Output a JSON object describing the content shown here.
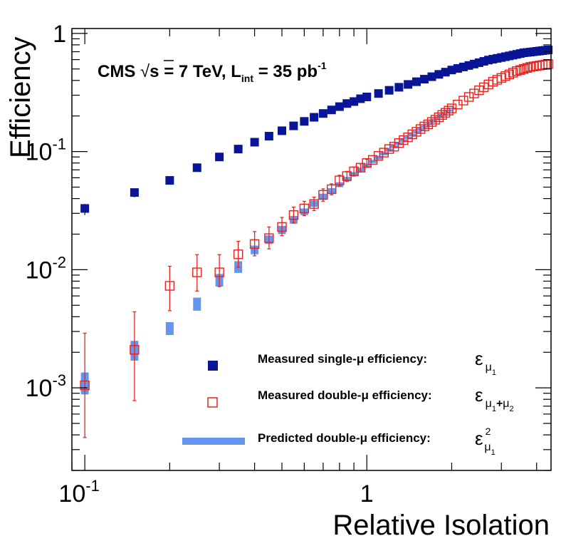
{
  "chart_data": {
    "type": "scatter",
    "title": "",
    "xlabel": "Relative Isolation",
    "ylabel": "Efficiency",
    "xscale": "log",
    "yscale": "log",
    "xlim": [
      0.09,
      4.5
    ],
    "ylim": [
      0.0002,
      1.1
    ],
    "x_ticks": [
      {
        "value": 0.1,
        "base": "10",
        "exp": "-1"
      },
      {
        "value": 1,
        "base": "1",
        "exp": ""
      }
    ],
    "y_ticks": [
      {
        "value": 0.001,
        "base": "10",
        "exp": "-3"
      },
      {
        "value": 0.01,
        "base": "10",
        "exp": "-2"
      },
      {
        "value": 0.1,
        "base": "10",
        "exp": "-1"
      },
      {
        "value": 1,
        "base": "1",
        "exp": ""
      }
    ],
    "annotation": {
      "prefix": "CMS ",
      "sqrt": "√",
      "s_energy": "s = 7 TeV,  L",
      "lumi_sub": "int",
      "lumi_val": " = 35 pb",
      "lumi_sup": "-1"
    },
    "legend": {
      "placement": "bottom-right",
      "entries": [
        {
          "label": "Measured single-μ efficiency:",
          "sym_main": "ε",
          "sym_sub": "μ",
          "sym_subsub": "1",
          "sym_mid": "",
          "sym_sub2": "",
          "sym_subsub2": "",
          "sym_sup": "",
          "marker": "filled-square"
        },
        {
          "label": "Measured double-μ efficiency:",
          "sym_main": "ε",
          "sym_sub": "μ",
          "sym_subsub": "1",
          "sym_mid": "+",
          "sym_sub2": "μ",
          "sym_subsub2": "2",
          "sym_sup": "",
          "marker": "open-square"
        },
        {
          "label": "Predicted double-μ  efficiency:",
          "sym_main": "ε",
          "sym_sub": "μ",
          "sym_subsub": "1",
          "sym_mid": "",
          "sym_sub2": "",
          "sym_subsub2": "",
          "sym_sup": "2",
          "marker": "band"
        }
      ]
    },
    "series": [
      {
        "name": "Measured single-μ efficiency",
        "marker": "filled-square",
        "color": "#0a1496",
        "x": [
          0.1,
          0.15,
          0.2,
          0.25,
          0.3,
          0.35,
          0.4,
          0.45,
          0.5,
          0.55,
          0.6,
          0.65,
          0.7,
          0.75,
          0.8,
          0.85,
          0.9,
          0.95,
          1.0,
          1.1,
          1.2,
          1.3,
          1.4,
          1.5,
          1.6,
          1.7,
          1.8,
          1.9,
          2.0,
          2.1,
          2.2,
          2.3,
          2.4,
          2.5,
          2.6,
          2.7,
          2.8,
          2.9,
          3.0,
          3.1,
          3.2,
          3.3,
          3.4,
          3.5,
          3.6,
          3.7,
          3.8,
          3.9,
          4.0,
          4.1,
          4.2,
          4.3,
          4.4
        ],
        "y": [
          0.033,
          0.045,
          0.057,
          0.073,
          0.09,
          0.105,
          0.12,
          0.135,
          0.15,
          0.165,
          0.18,
          0.195,
          0.21,
          0.225,
          0.24,
          0.255,
          0.265,
          0.28,
          0.29,
          0.31,
          0.33,
          0.35,
          0.37,
          0.39,
          0.41,
          0.43,
          0.45,
          0.47,
          0.49,
          0.505,
          0.52,
          0.535,
          0.55,
          0.565,
          0.58,
          0.595,
          0.605,
          0.615,
          0.625,
          0.635,
          0.645,
          0.655,
          0.665,
          0.675,
          0.685,
          0.69,
          0.695,
          0.7,
          0.705,
          0.71,
          0.715,
          0.72,
          0.725
        ],
        "y_err_low": [
          0.004,
          0.004,
          0.003
        ],
        "y_err_high": [
          0.003,
          0.003,
          0.002
        ]
      },
      {
        "name": "Measured double-μ efficiency",
        "marker": "open-square",
        "color": "#e8231e",
        "x": [
          0.1,
          0.15,
          0.2,
          0.25,
          0.3,
          0.35,
          0.4,
          0.45,
          0.5,
          0.55,
          0.6,
          0.65,
          0.7,
          0.75,
          0.8,
          0.85,
          0.9,
          0.95,
          1.0,
          1.05,
          1.1,
          1.15,
          1.2,
          1.25,
          1.3,
          1.35,
          1.4,
          1.45,
          1.5,
          1.55,
          1.6,
          1.65,
          1.7,
          1.75,
          1.8,
          1.85,
          1.9,
          1.95,
          2.0,
          2.1,
          2.2,
          2.3,
          2.4,
          2.5,
          2.6,
          2.7,
          2.8,
          2.9,
          3.0,
          3.1,
          3.2,
          3.3,
          3.4,
          3.5,
          3.6,
          3.7,
          3.8,
          3.9,
          4.0,
          4.1,
          4.2,
          4.3,
          4.4
        ],
        "y": [
          0.00105,
          0.0021,
          0.0073,
          0.0095,
          0.0095,
          0.0135,
          0.0165,
          0.0185,
          0.023,
          0.029,
          0.033,
          0.036,
          0.043,
          0.048,
          0.057,
          0.062,
          0.068,
          0.073,
          0.08,
          0.085,
          0.092,
          0.098,
          0.105,
          0.11,
          0.118,
          0.125,
          0.132,
          0.14,
          0.147,
          0.155,
          0.163,
          0.17,
          0.178,
          0.186,
          0.195,
          0.204,
          0.213,
          0.222,
          0.232,
          0.25,
          0.27,
          0.29,
          0.31,
          0.33,
          0.35,
          0.37,
          0.39,
          0.405,
          0.42,
          0.435,
          0.45,
          0.465,
          0.48,
          0.49,
          0.5,
          0.51,
          0.52,
          0.525,
          0.53,
          0.535,
          0.54,
          0.545,
          0.55
        ],
        "y_err_low": [
          0.00067,
          0.00132,
          0.0028,
          0.0029,
          0.0023,
          0.003,
          0.0034,
          0.0035,
          0.0036,
          0.0041,
          0.0043,
          0.0044,
          0.005,
          0.005,
          0.006,
          0.006,
          0.006,
          0.006,
          0.006
        ],
        "y_err_high": [
          0.00185,
          0.0023,
          0.0034,
          0.0039,
          0.0039,
          0.0039,
          0.0045,
          0.0045,
          0.0047,
          0.0049,
          0.0049,
          0.0051,
          0.0053,
          0.0053,
          0.006,
          0.006,
          0.006,
          0.006,
          0.006
        ]
      },
      {
        "name": "Predicted double-μ efficiency",
        "marker": "band",
        "color": "#6496f0",
        "x": [
          0.1,
          0.15,
          0.2,
          0.25,
          0.3,
          0.35,
          0.4,
          0.45,
          0.5,
          0.55,
          0.6,
          0.65,
          0.7,
          0.75,
          0.8,
          0.85,
          0.9,
          0.95,
          1.0,
          1.05,
          1.1,
          1.15,
          1.2,
          1.25,
          1.3,
          1.35,
          1.4,
          1.45,
          1.5,
          1.55,
          1.6,
          1.65,
          1.7,
          1.75,
          1.8,
          1.85,
          1.9,
          1.95,
          2.0
        ],
        "y_low": [
          0.00088,
          0.0017,
          0.0028,
          0.0045,
          0.0072,
          0.0094,
          0.0135,
          0.0165,
          0.02,
          0.0245,
          0.029,
          0.034,
          0.039,
          0.044,
          0.05,
          0.056,
          0.062,
          0.068,
          0.074,
          0.08,
          0.086,
          0.093,
          0.1,
          0.107,
          0.114,
          0.121,
          0.128,
          0.135,
          0.143,
          0.151,
          0.159,
          0.167,
          0.175,
          0.183,
          0.192,
          0.2,
          0.209,
          0.218,
          0.228
        ],
        "y_high": [
          0.00135,
          0.0025,
          0.0036,
          0.0058,
          0.0092,
          0.0118,
          0.016,
          0.0195,
          0.0235,
          0.0285,
          0.033,
          0.0385,
          0.044,
          0.049,
          0.055,
          0.061,
          0.067,
          0.073,
          0.079,
          0.085,
          0.092,
          0.099,
          0.106,
          0.113,
          0.12,
          0.127,
          0.134,
          0.142,
          0.15,
          0.158,
          0.166,
          0.174,
          0.182,
          0.19,
          0.199,
          0.208,
          0.217,
          0.226,
          0.236
        ]
      }
    ]
  }
}
